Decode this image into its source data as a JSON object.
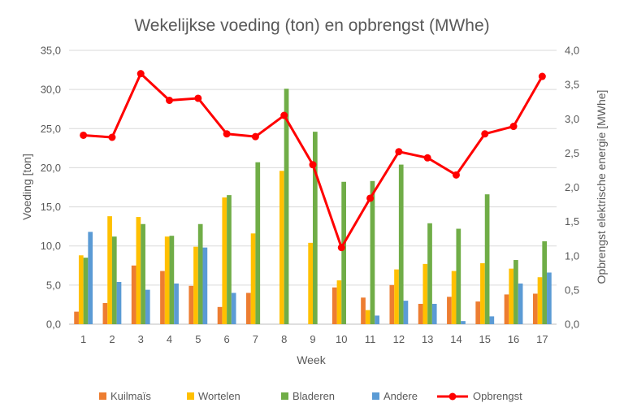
{
  "chart_data": {
    "type": "bar",
    "title": "Wekelijkse voeding (ton) en opbrengst (MWhe)",
    "xlabel": "Week",
    "ylabel": "Voeding [ton]",
    "y2label": "Opbrengst elektrische energie [MWhe]",
    "categories": [
      "1",
      "2",
      "3",
      "4",
      "5",
      "6",
      "7",
      "8",
      "9",
      "10",
      "11",
      "12",
      "13",
      "14",
      "15",
      "16",
      "17"
    ],
    "ylim": [
      0,
      35
    ],
    "y2lim": [
      0,
      4
    ],
    "yticks": [
      "0,0",
      "5,0",
      "10,0",
      "15,0",
      "20,0",
      "25,0",
      "30,0",
      "35,0"
    ],
    "y2ticks": [
      "0,0",
      "0,5",
      "1,0",
      "1,5",
      "2,0",
      "2,5",
      "3,0",
      "3,5",
      "4,0"
    ],
    "grid": true,
    "legend_position": "bottom",
    "series": [
      {
        "name": "Kuilmaïs",
        "color": "#ED7D31",
        "axis": "left",
        "kind": "bar",
        "values": [
          1.6,
          2.7,
          7.5,
          6.8,
          4.9,
          2.2,
          4.0,
          0,
          0,
          4.7,
          3.4,
          5.0,
          2.6,
          3.5,
          2.9,
          3.8,
          3.9
        ]
      },
      {
        "name": "Wortelen",
        "color": "#FFC000",
        "axis": "left",
        "kind": "bar",
        "values": [
          8.8,
          13.8,
          13.7,
          11.2,
          9.9,
          16.2,
          11.6,
          19.6,
          10.4,
          5.6,
          1.8,
          7.0,
          7.7,
          6.8,
          7.8,
          7.1,
          6.0
        ]
      },
      {
        "name": "Bladeren",
        "color": "#70AD47",
        "axis": "left",
        "kind": "bar",
        "values": [
          8.5,
          11.2,
          12.8,
          11.3,
          12.8,
          16.5,
          20.7,
          30.1,
          24.6,
          18.2,
          18.3,
          20.4,
          12.9,
          12.2,
          16.6,
          8.2,
          10.6
        ]
      },
      {
        "name": "Andere",
        "color": "#5B9BD5",
        "axis": "left",
        "kind": "bar",
        "values": [
          11.8,
          5.4,
          4.4,
          5.2,
          9.8,
          4.0,
          0,
          0,
          0,
          0,
          1.1,
          3.0,
          2.6,
          0.4,
          1.0,
          5.2,
          6.6
        ]
      },
      {
        "name": "Opbrengst",
        "color": "#FF0000",
        "axis": "right",
        "kind": "line",
        "values": [
          2.76,
          2.73,
          3.66,
          3.27,
          3.3,
          2.78,
          2.74,
          3.05,
          2.33,
          1.12,
          1.84,
          2.52,
          2.43,
          2.18,
          2.78,
          2.89,
          3.62
        ]
      }
    ]
  }
}
